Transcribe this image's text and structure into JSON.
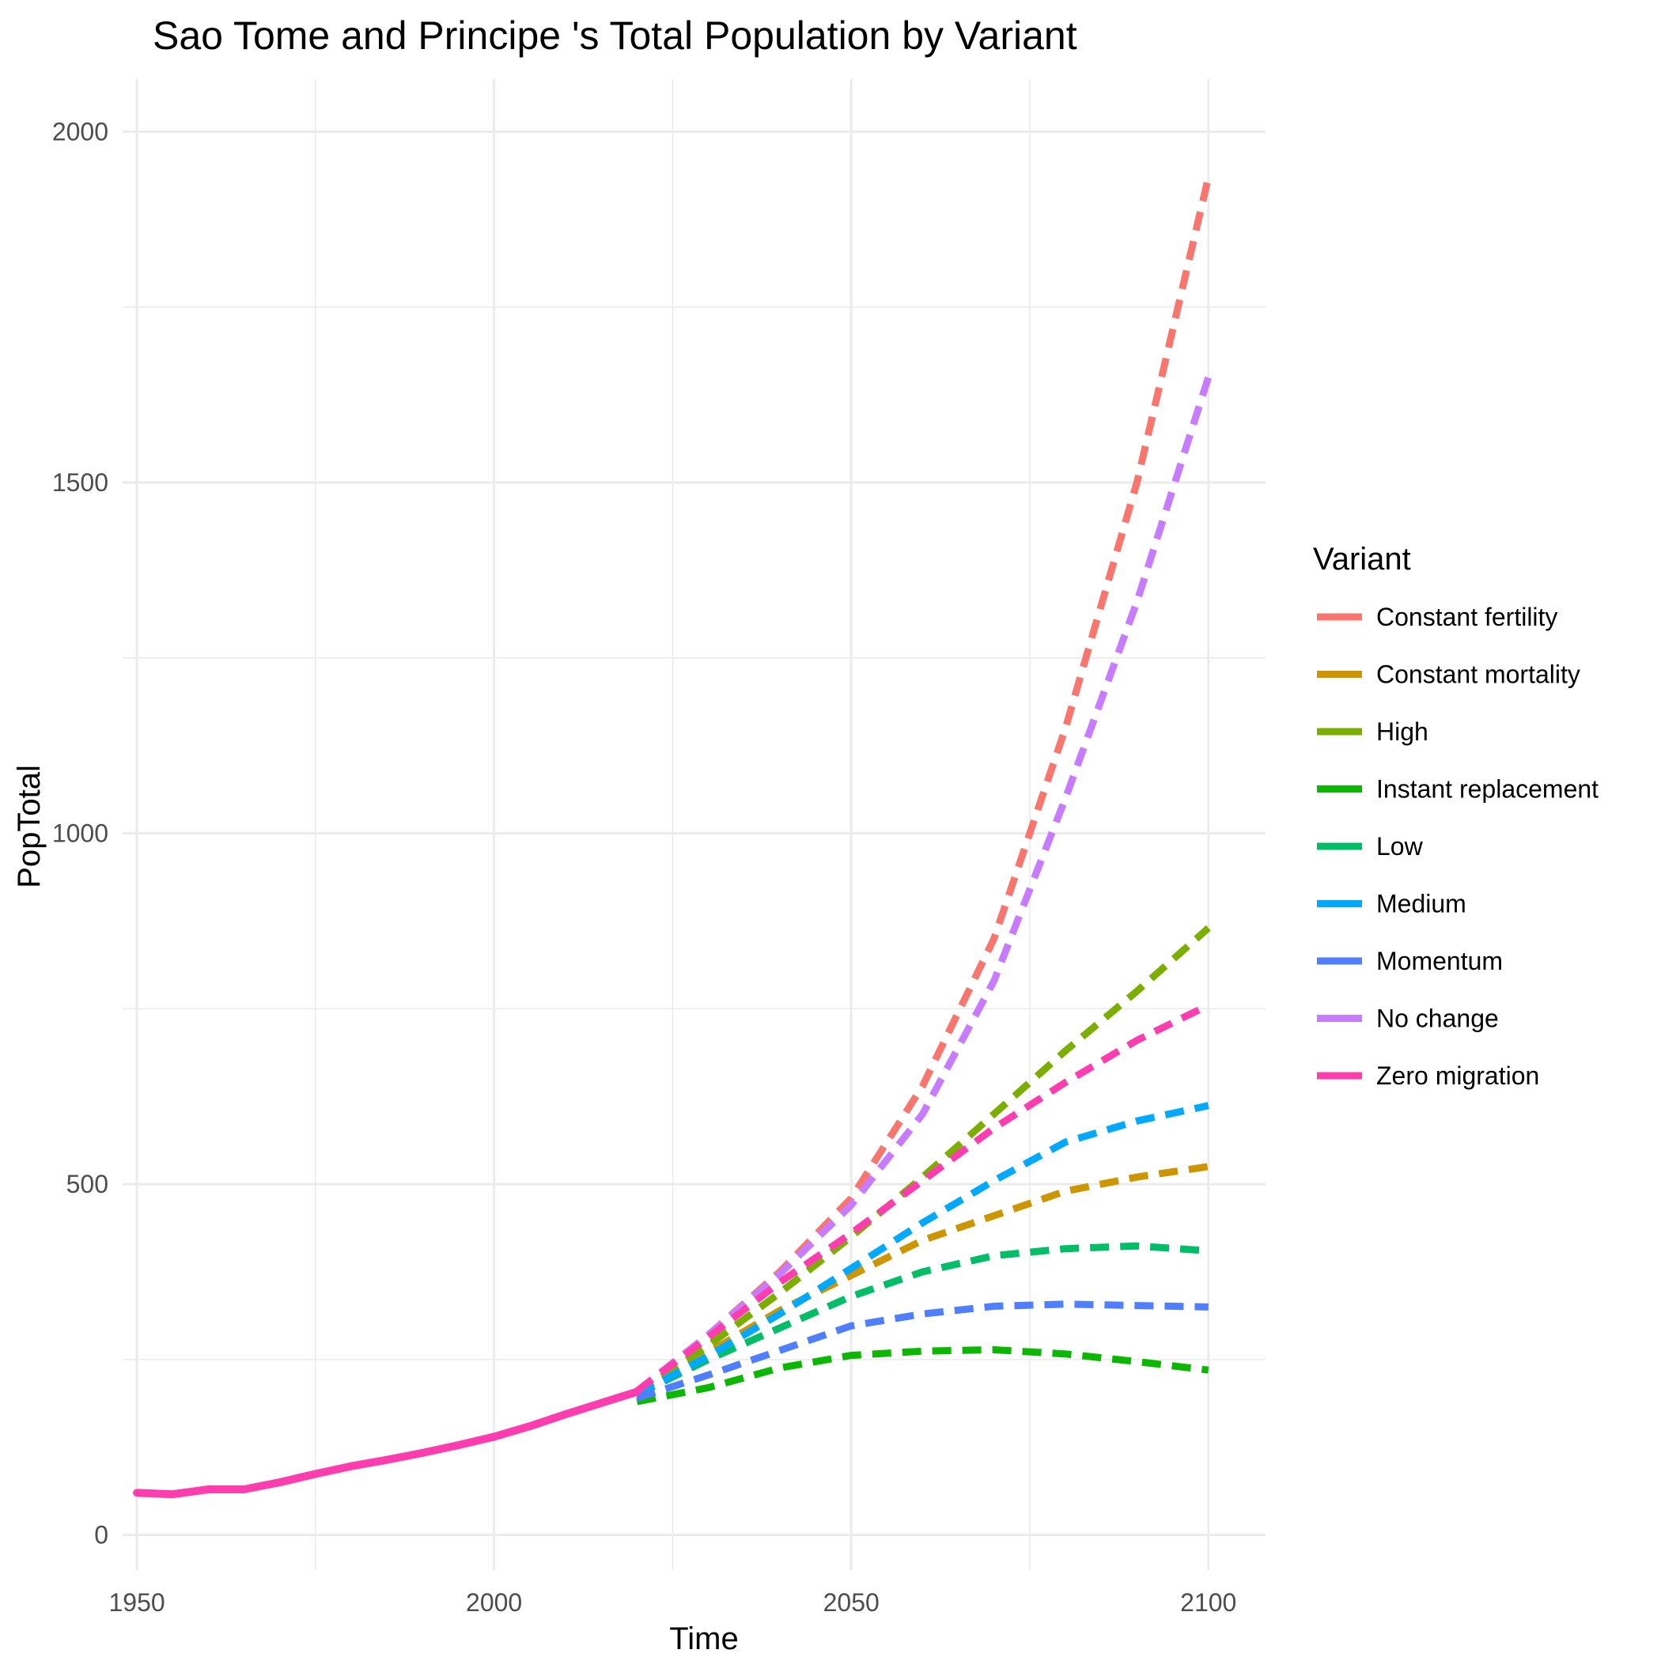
{
  "chart_data": {
    "type": "line",
    "title": "Sao Tome and Principe 's Total Population by Variant",
    "xlabel": "Time",
    "ylabel": "PopTotal",
    "xlim": [
      1948,
      2108
    ],
    "ylim": [
      -50,
      2075
    ],
    "x_ticks": [
      1950,
      2000,
      2050,
      2100
    ],
    "y_ticks": [
      0,
      500,
      1000,
      1500,
      2000
    ],
    "x_tick_labels": [
      "1950",
      "2000",
      "2050",
      "2100"
    ],
    "y_tick_labels": [
      "0",
      "500",
      "1000",
      "1500",
      "2000"
    ],
    "grid": true,
    "legend": {
      "title": "Variant",
      "position": "right"
    },
    "historical": {
      "color": "#FF3DAF",
      "x": [
        1950,
        1955,
        1960,
        1965,
        1970,
        1975,
        1980,
        1985,
        1990,
        1995,
        2000,
        2005,
        2010,
        2015,
        2020
      ],
      "values": [
        60,
        58,
        65,
        65,
        75,
        87,
        98,
        107,
        117,
        128,
        140,
        155,
        172,
        188,
        204
      ]
    },
    "series": [
      {
        "name": "Constant fertility",
        "color": "#F8766D",
        "x": [
          2020,
          2030,
          2040,
          2050,
          2060,
          2070,
          2080,
          2090,
          2100
        ],
        "values": [
          205,
          285,
          375,
          480,
          640,
          850,
          1150,
          1500,
          1935
        ]
      },
      {
        "name": "Constant mortality",
        "color": "#CD9600",
        "x": [
          2020,
          2030,
          2040,
          2050,
          2060,
          2070,
          2080,
          2090,
          2100
        ],
        "values": [
          200,
          260,
          320,
          370,
          420,
          455,
          490,
          510,
          525
        ]
      },
      {
        "name": "High",
        "color": "#7CAE00",
        "x": [
          2020,
          2030,
          2040,
          2050,
          2060,
          2070,
          2080,
          2090,
          2100
        ],
        "values": [
          202,
          270,
          345,
          425,
          510,
          600,
          690,
          775,
          865
        ]
      },
      {
        "name": "Instant replacement",
        "color": "#0CB702",
        "x": [
          2020,
          2030,
          2040,
          2050,
          2060,
          2070,
          2080,
          2090,
          2100
        ],
        "values": [
          190,
          210,
          238,
          256,
          262,
          264,
          258,
          247,
          235
        ]
      },
      {
        "name": "Low",
        "color": "#00BE67",
        "x": [
          2020,
          2030,
          2040,
          2050,
          2060,
          2070,
          2080,
          2090,
          2100
        ],
        "values": [
          200,
          250,
          295,
          340,
          375,
          398,
          408,
          412,
          405
        ]
      },
      {
        "name": "Medium",
        "color": "#00A9FF",
        "x": [
          2020,
          2030,
          2040,
          2050,
          2060,
          2070,
          2080,
          2090,
          2100
        ],
        "values": [
          200,
          255,
          315,
          380,
          445,
          505,
          560,
          590,
          612
        ]
      },
      {
        "name": "Momentum",
        "color": "#4F7FFF",
        "x": [
          2020,
          2030,
          2040,
          2050,
          2060,
          2070,
          2080,
          2090,
          2100
        ],
        "values": [
          195,
          228,
          263,
          298,
          315,
          326,
          329,
          327,
          325
        ]
      },
      {
        "name": "No change",
        "color": "#C77CFF",
        "x": [
          2020,
          2030,
          2040,
          2050,
          2060,
          2070,
          2080,
          2090,
          2100
        ],
        "values": [
          205,
          285,
          372,
          470,
          600,
          790,
          1050,
          1330,
          1650
        ]
      },
      {
        "name": "Zero migration",
        "color": "#FF3DAF",
        "x": [
          2020,
          2030,
          2040,
          2050,
          2060,
          2070,
          2080,
          2090,
          2100
        ],
        "values": [
          205,
          282,
          360,
          430,
          505,
          580,
          645,
          705,
          755
        ]
      }
    ]
  }
}
